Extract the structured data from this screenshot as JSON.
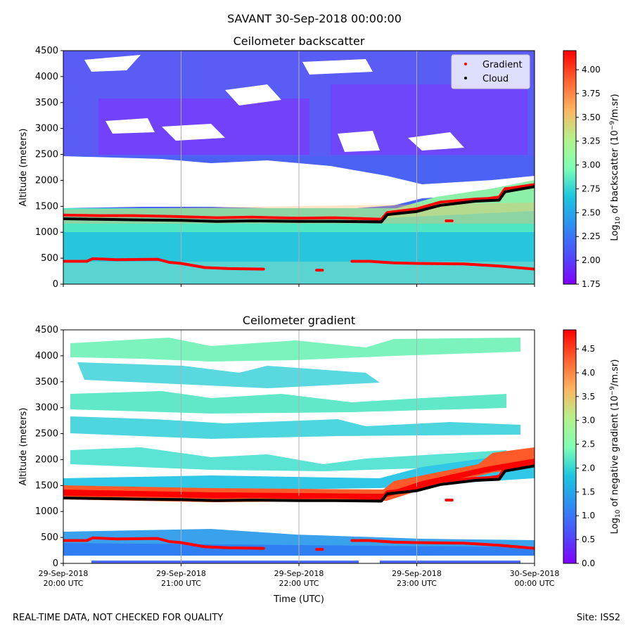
{
  "suptitle": "SAVANT 30-Sep-2018 00:00:00",
  "footer_left": "REAL-TIME DATA, NOT CHECKED FOR QUALITY",
  "footer_right": "Site: ISS2",
  "xlabel": "Time (UTC)",
  "x_ticks": [
    {
      "date": "29-Sep-2018",
      "time": "20:00 UTC"
    },
    {
      "date": "29-Sep-2018",
      "time": "21:00 UTC"
    },
    {
      "date": "29-Sep-2018",
      "time": "22:00 UTC"
    },
    {
      "date": "29-Sep-2018",
      "time": "23:00 UTC"
    },
    {
      "date": "30-Sep-2018",
      "time": "00:00 UTC"
    }
  ],
  "colors": {
    "gradient_marker": "#ff0000",
    "cloud_marker": "#000000",
    "gridline": "#b0b0b0"
  },
  "chart_data": [
    {
      "type": "heatmap",
      "title": "Ceilometer backscatter",
      "ylabel": "Altitude (meters)",
      "ylim": [
        0,
        4500
      ],
      "y_ticks": [
        0,
        500,
        1000,
        1500,
        2000,
        2500,
        3000,
        3500,
        4000,
        4500
      ],
      "x_hours": [
        20,
        24
      ],
      "colorbar": {
        "label": "Log10 of backscatter (10^-9/m.sr)",
        "range": [
          1.75,
          4.2
        ],
        "ticks": [
          "1.75",
          "2.00",
          "2.25",
          "2.50",
          "2.75",
          "3.00",
          "3.25",
          "3.50",
          "3.75",
          "4.00"
        ]
      },
      "legend": {
        "position": "top-right",
        "entries": [
          "Gradient",
          "Cloud"
        ]
      },
      "series": [
        {
          "name": "Gradient",
          "segments": [
            [
              [
                20.0,
                440
              ],
              [
                20.2,
                440
              ],
              [
                20.25,
                490
              ],
              [
                20.45,
                470
              ],
              [
                20.8,
                480
              ],
              [
                20.9,
                420
              ],
              [
                21.0,
                400
              ],
              [
                21.2,
                320
              ],
              [
                21.4,
                300
              ],
              [
                21.7,
                290
              ]
            ],
            [
              [
                22.15,
                270
              ],
              [
                22.2,
                270
              ]
            ],
            [
              [
                22.45,
                440
              ],
              [
                22.6,
                440
              ],
              [
                22.8,
                410
              ],
              [
                23.0,
                400
              ],
              [
                23.4,
                390
              ],
              [
                23.7,
                350
              ],
              [
                24.0,
                290
              ]
            ],
            [
              [
                23.25,
                1220
              ],
              [
                23.3,
                1220
              ]
            ]
          ]
        },
        {
          "name": "Gradient",
          "segments": [
            [
              [
                20.0,
                1330
              ],
              [
                20.3,
                1320
              ],
              [
                20.6,
                1320
              ],
              [
                21.0,
                1300
              ],
              [
                21.3,
                1280
              ],
              [
                21.6,
                1290
              ],
              [
                22.0,
                1270
              ],
              [
                22.3,
                1280
              ],
              [
                22.7,
                1250
              ],
              [
                22.75,
                1380
              ],
              [
                23.0,
                1450
              ],
              [
                23.2,
                1580
              ],
              [
                23.5,
                1640
              ],
              [
                23.6,
                1650
              ],
              [
                23.7,
                1680
              ],
              [
                23.75,
                1840
              ],
              [
                23.8,
                1850
              ],
              [
                24.0,
                1920
              ]
            ]
          ]
        },
        {
          "name": "Cloud",
          "segments": [
            [
              [
                20.0,
                1260
              ],
              [
                20.3,
                1250
              ],
              [
                20.6,
                1240
              ],
              [
                21.0,
                1230
              ],
              [
                21.3,
                1210
              ],
              [
                21.6,
                1220
              ],
              [
                22.0,
                1210
              ],
              [
                22.3,
                1210
              ],
              [
                22.7,
                1200
              ],
              [
                22.75,
                1340
              ],
              [
                23.0,
                1400
              ],
              [
                23.2,
                1520
              ],
              [
                23.5,
                1600
              ],
              [
                23.7,
                1620
              ],
              [
                23.75,
                1780
              ],
              [
                24.0,
                1880
              ]
            ]
          ]
        }
      ]
    },
    {
      "type": "heatmap",
      "title": "Ceilometer gradient",
      "ylabel": "Altitude (meters)",
      "ylim": [
        0,
        4500
      ],
      "y_ticks": [
        0,
        500,
        1000,
        1500,
        2000,
        2500,
        3000,
        3500,
        4000,
        4500
      ],
      "x_hours": [
        20,
        24
      ],
      "colorbar": {
        "label": "Log10 of negative gradient (10^-9/m.sr)",
        "range": [
          0.0,
          4.9
        ],
        "ticks": [
          "0.0",
          "0.5",
          "1.0",
          "1.5",
          "2.0",
          "2.5",
          "3.0",
          "3.5",
          "4.0",
          "4.5"
        ]
      },
      "series": [
        {
          "name": "Gradient",
          "segments": [
            [
              [
                20.0,
                440
              ],
              [
                20.2,
                440
              ],
              [
                20.25,
                490
              ],
              [
                20.45,
                470
              ],
              [
                20.8,
                480
              ],
              [
                20.9,
                420
              ],
              [
                21.0,
                400
              ],
              [
                21.2,
                320
              ],
              [
                21.4,
                300
              ],
              [
                21.7,
                290
              ]
            ],
            [
              [
                22.15,
                270
              ],
              [
                22.2,
                270
              ]
            ],
            [
              [
                22.45,
                440
              ],
              [
                22.6,
                440
              ],
              [
                22.8,
                410
              ],
              [
                23.0,
                400
              ],
              [
                23.4,
                390
              ],
              [
                23.7,
                350
              ],
              [
                24.0,
                290
              ]
            ],
            [
              [
                23.25,
                1220
              ],
              [
                23.3,
                1220
              ]
            ]
          ]
        },
        {
          "name": "Gradient",
          "segments": [
            [
              [
                20.0,
                1330
              ],
              [
                20.3,
                1320
              ],
              [
                20.6,
                1320
              ],
              [
                21.0,
                1300
              ],
              [
                21.3,
                1280
              ],
              [
                21.6,
                1290
              ],
              [
                22.0,
                1270
              ],
              [
                22.3,
                1280
              ],
              [
                22.7,
                1250
              ],
              [
                22.75,
                1380
              ],
              [
                23.0,
                1450
              ],
              [
                23.2,
                1580
              ],
              [
                23.5,
                1640
              ],
              [
                23.6,
                1650
              ],
              [
                23.7,
                1680
              ],
              [
                23.75,
                1840
              ],
              [
                23.8,
                1850
              ],
              [
                24.0,
                1920
              ]
            ]
          ]
        },
        {
          "name": "Cloud",
          "segments": [
            [
              [
                20.0,
                1260
              ],
              [
                20.3,
                1250
              ],
              [
                20.6,
                1240
              ],
              [
                21.0,
                1230
              ],
              [
                21.3,
                1210
              ],
              [
                21.6,
                1220
              ],
              [
                22.0,
                1210
              ],
              [
                22.3,
                1210
              ],
              [
                22.7,
                1200
              ],
              [
                22.75,
                1340
              ],
              [
                23.0,
                1400
              ],
              [
                23.2,
                1520
              ],
              [
                23.5,
                1600
              ],
              [
                23.7,
                1620
              ],
              [
                23.75,
                1780
              ],
              [
                24.0,
                1880
              ]
            ]
          ]
        }
      ]
    }
  ]
}
